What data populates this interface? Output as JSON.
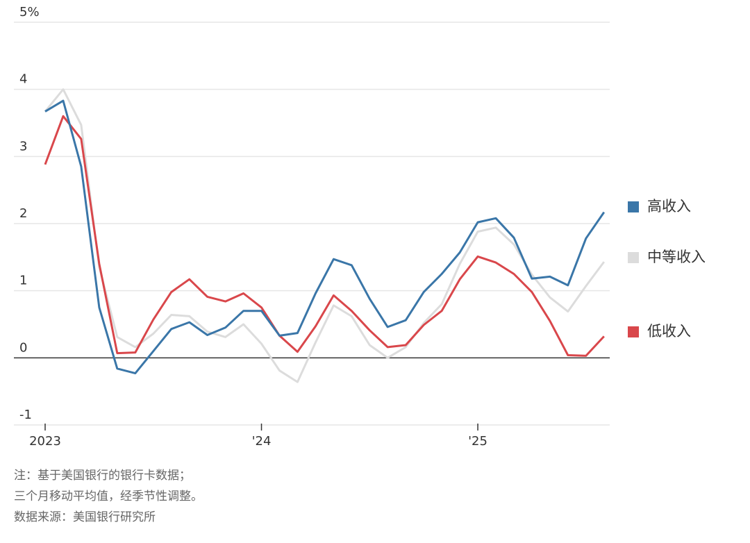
{
  "chart_data": {
    "type": "line",
    "categories": [
      "2023",
      null,
      null,
      null,
      null,
      null,
      null,
      null,
      null,
      null,
      null,
      null,
      "'24",
      null,
      null,
      null,
      null,
      null,
      null,
      null,
      null,
      null,
      null,
      null,
      "'25",
      null,
      null,
      null,
      null,
      null,
      null,
      null
    ],
    "series": [
      {
        "name": "高收入",
        "color": "#3a76a8",
        "values": [
          3.67,
          3.83,
          2.85,
          0.75,
          -0.16,
          -0.23,
          0.1,
          0.43,
          0.53,
          0.34,
          0.45,
          0.7,
          0.7,
          0.33,
          0.37,
          0.96,
          1.47,
          1.38,
          0.88,
          0.46,
          0.56,
          0.98,
          1.25,
          1.57,
          2.02,
          2.08,
          1.79,
          1.18,
          1.21,
          1.08,
          1.78,
          2.17
        ]
      },
      {
        "name": "中等收入",
        "color": "#dcdcdc",
        "values": [
          3.67,
          4.0,
          3.47,
          1.35,
          0.31,
          0.16,
          0.36,
          0.64,
          0.62,
          0.39,
          0.31,
          0.5,
          0.21,
          -0.19,
          -0.36,
          0.23,
          0.78,
          0.62,
          0.19,
          0.0,
          0.16,
          0.52,
          0.8,
          1.4,
          1.88,
          1.94,
          1.69,
          1.24,
          0.9,
          0.69,
          1.07,
          1.43
        ]
      },
      {
        "name": "低收入",
        "color": "#d9474b",
        "values": [
          2.88,
          3.6,
          3.26,
          1.4,
          0.07,
          0.08,
          0.57,
          0.98,
          1.17,
          0.91,
          0.84,
          0.96,
          0.75,
          0.33,
          0.09,
          0.47,
          0.93,
          0.7,
          0.41,
          0.16,
          0.19,
          0.49,
          0.7,
          1.17,
          1.51,
          1.42,
          1.25,
          0.98,
          0.55,
          0.04,
          0.03,
          0.32
        ]
      }
    ],
    "ylim": [
      -1,
      5
    ],
    "yticks": [
      -1,
      0,
      1,
      2,
      3,
      4,
      {
        "value": 5,
        "label": "5%"
      }
    ],
    "grid": true,
    "notes": [
      "注：基于美国银行的银行卡数据；",
      "三个月移动平均值，经季节性调整。",
      "数据来源：美国银行研究所"
    ]
  }
}
